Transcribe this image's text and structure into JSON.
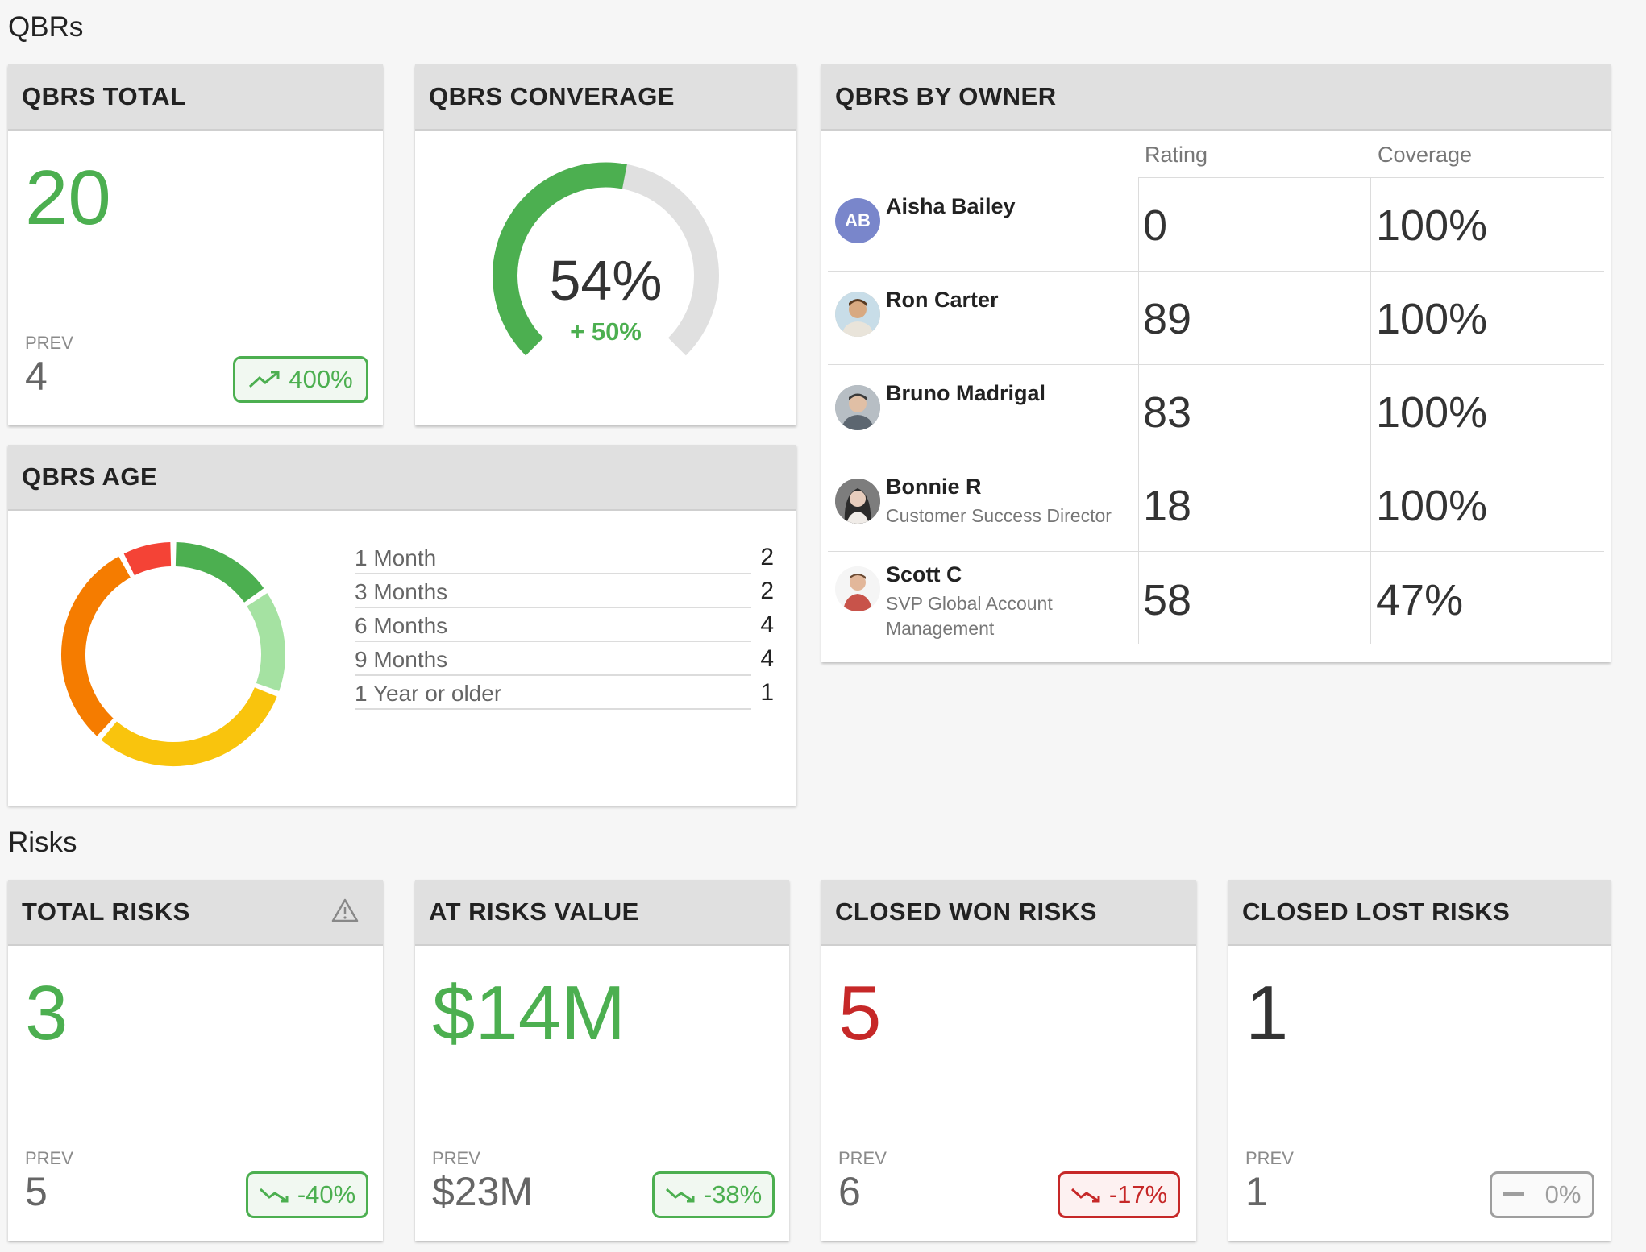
{
  "sections": {
    "qbrs": "QBRs",
    "risks": "Risks"
  },
  "qbrs_total": {
    "title": "QBRS TOTAL",
    "value": "20",
    "prev_label": "PREV",
    "prev_value": "4",
    "badge": "400%",
    "badge_icon": "trending-up-icon"
  },
  "qbrs_coverage": {
    "title": "QBRS CONVERAGE",
    "percent": "54%",
    "change": "+ 50%",
    "gauge_fraction": 0.54,
    "colors": {
      "fill": "#4caf50",
      "track": "#e0e0e0"
    }
  },
  "qbrs_by_owner": {
    "title": "QBRS BY OWNER",
    "columns": {
      "rating": "Rating",
      "coverage": "Coverage"
    },
    "rows": [
      {
        "name": "Aisha Bailey",
        "subtitle": "",
        "initials": "AB",
        "rating": "0",
        "coverage": "100%"
      },
      {
        "name": "Ron Carter",
        "subtitle": "",
        "initials": "",
        "rating": "89",
        "coverage": "100%"
      },
      {
        "name": "Bruno Madrigal",
        "subtitle": "",
        "initials": "",
        "rating": "83",
        "coverage": "100%"
      },
      {
        "name": "Bonnie R",
        "subtitle": "Customer Success Director",
        "initials": "",
        "rating": "18",
        "coverage": "100%"
      },
      {
        "name": "Scott C",
        "subtitle": "SVP Global Account Management",
        "initials": "",
        "rating": "58",
        "coverage": "47%"
      }
    ]
  },
  "qbrs_age": {
    "title": "QBRS AGE",
    "items": [
      {
        "label": "1 Month",
        "count": "2"
      },
      {
        "label": "3 Months",
        "count": "2"
      },
      {
        "label": "6 Months",
        "count": "4"
      },
      {
        "label": "9 Months",
        "count": "4"
      },
      {
        "label": "1 Year or older",
        "count": "1"
      }
    ],
    "colors": [
      "#4caf50",
      "#a5e2a2",
      "#f9c40d",
      "#f57c00",
      "#f44336"
    ]
  },
  "total_risks": {
    "title": "TOTAL RISKS",
    "icon": "warning-icon",
    "value": "3",
    "prev_label": "PREV",
    "prev_value": "5",
    "badge": "-40%",
    "badge_icon": "trending-down-icon"
  },
  "at_risks_value": {
    "title": "AT RISKS VALUE",
    "value": "$14M",
    "prev_label": "PREV",
    "prev_value": "$23M",
    "badge": "-38%",
    "badge_icon": "trending-down-icon"
  },
  "closed_won_risks": {
    "title": "CLOSED WON RISKS",
    "value": "5",
    "prev_label": "PREV",
    "prev_value": "6",
    "badge": "-17%",
    "badge_icon": "trending-down-icon"
  },
  "closed_lost_risks": {
    "title": "CLOSED LOST RISKS",
    "value": "1",
    "prev_label": "PREV",
    "prev_value": "1",
    "badge": "0%",
    "badge_icon": "flat-icon"
  }
}
